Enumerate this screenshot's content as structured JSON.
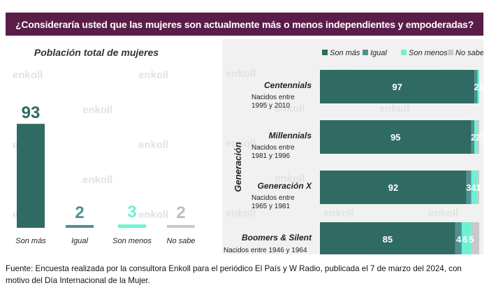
{
  "header": {
    "question": "¿Consideraría usted que las mujeres son actualmente más o menos independientes y empoderadas?"
  },
  "watermark": "enkoll",
  "colors": {
    "son_mas": "#2f6b63",
    "igual": "#4e9191",
    "son_menos": "#6ff0d2",
    "no_sabe": "#c9c9c9",
    "header_bg": "#5a1c48"
  },
  "chart_data": [
    {
      "type": "bar",
      "title": "Población total de mujeres",
      "categories": [
        "Son más",
        "Igual",
        "Son menos",
        "No sabe"
      ],
      "values": [
        93,
        2,
        3,
        2
      ],
      "ylim": [
        0,
        100
      ],
      "xlabel": "",
      "ylabel": "",
      "grid": false
    },
    {
      "type": "bar",
      "orientation": "horizontal-stacked",
      "ylabel": "Generación",
      "legend": {
        "position": "top-right",
        "entries": [
          "Son más",
          "Igual",
          "Son menos",
          "No sabe"
        ]
      },
      "series_names": [
        "Son más",
        "Igual",
        "Son menos",
        "No sabe"
      ],
      "groups": [
        {
          "name": "Centennials",
          "subtitle_lines": [
            "Nacidos entre",
            "1995 y 2010"
          ],
          "values": [
            97,
            2,
            1,
            0
          ]
        },
        {
          "name": "Millennials",
          "subtitle_lines": [
            "Nacidos entre",
            "1981 y 1996"
          ],
          "values": [
            95,
            2,
            2,
            1
          ]
        },
        {
          "name": "Generación X",
          "subtitle_lines": [
            "Nacidos entre",
            "1965 y 1981"
          ],
          "values": [
            92,
            3,
            4,
            1
          ]
        },
        {
          "name": "Boomers & Silent",
          "subtitle_lines": [
            "Nacidos entre 1946 y 1964"
          ],
          "values": [
            85,
            4,
            6,
            5
          ]
        }
      ],
      "xlim": [
        0,
        100
      ]
    }
  ],
  "footer": {
    "source": "Fuente: Encuesta realizada por la consultora Enkoll para el periódico El País y W Radio, publicada el 7 de marzo del 2024, con motivo del Día Internacional de la Mujer."
  }
}
